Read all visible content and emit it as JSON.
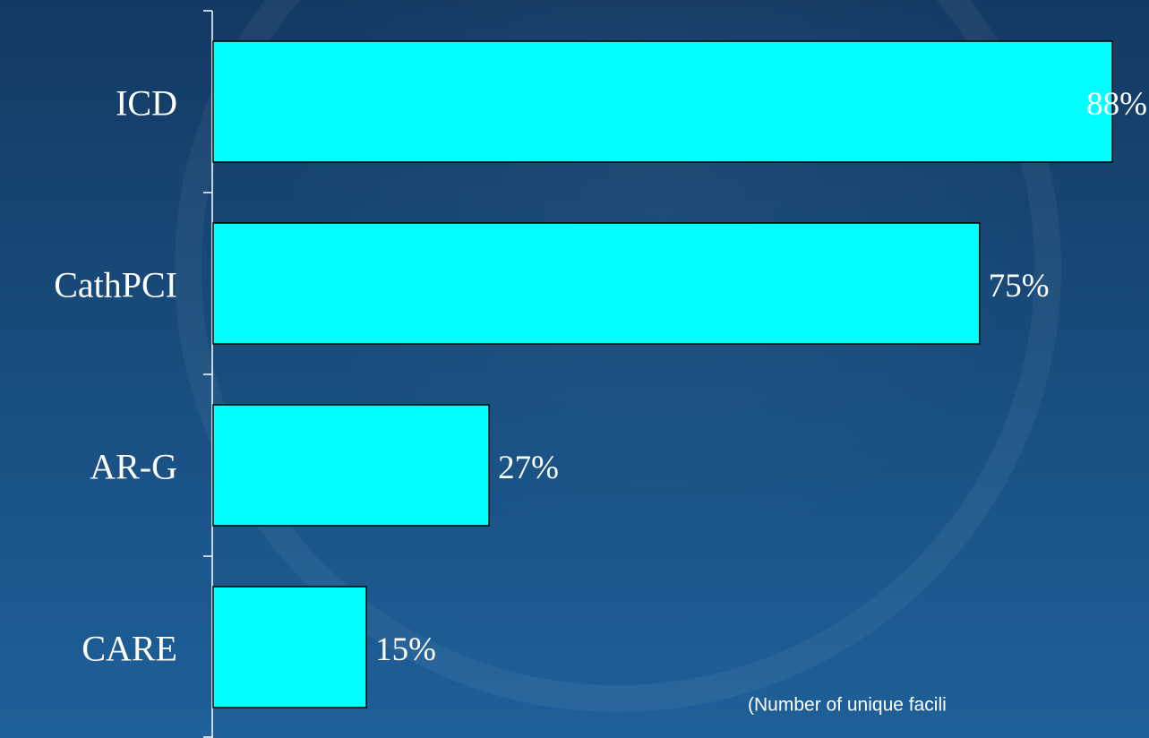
{
  "chart_data": {
    "type": "bar",
    "orientation": "horizontal",
    "categories": [
      "ICD",
      "CathPCI",
      "AR-G",
      "CARE"
    ],
    "values": [
      88,
      75,
      27,
      15
    ],
    "value_labels": [
      "88%",
      "75%",
      "27%",
      "15%"
    ],
    "color": "#00ffff",
    "xlim": [
      0,
      100
    ],
    "annotation": "(Number of unique facili"
  }
}
